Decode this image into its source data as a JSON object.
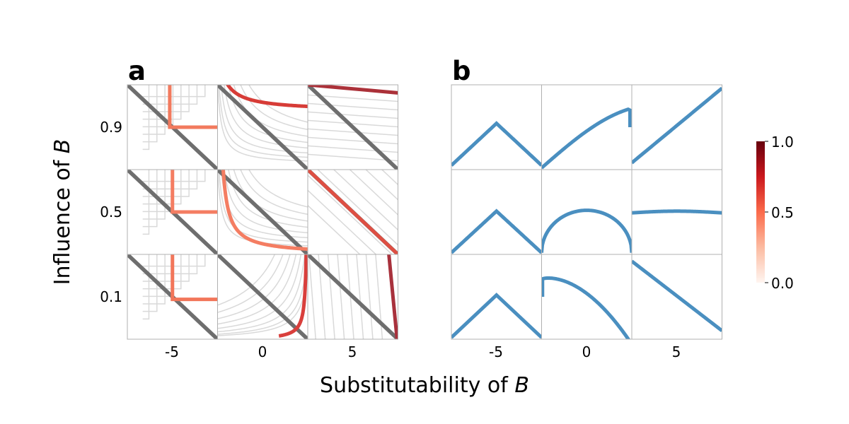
{
  "chart_data": {
    "type": "line",
    "panel_labels": [
      "a",
      "b"
    ],
    "xlabel": "Substitutability of ",
    "xlabel_var": "B",
    "ylabel": "Influence of ",
    "ylabel_var": "B",
    "x_tick_labels": [
      "-5",
      "0",
      "5"
    ],
    "y_tick_labels": [
      "0.9",
      "0.5",
      "0.1"
    ],
    "grid_rows_influence": [
      0.9,
      0.5,
      0.1
    ],
    "grid_cols_substitutability": [
      -5,
      0,
      5
    ],
    "colorbar": {
      "tick_labels": [
        "1.0",
        "0.5",
        "0.0"
      ],
      "range": [
        0.0,
        1.0
      ],
      "colors": [
        "#fff5f0",
        "#fcbba1",
        "#fb6a4a",
        "#cb181d",
        "#67000d"
      ]
    },
    "colors": {
      "budget_line": "#6e6e6e",
      "indifference_curves": "#d9d9d9",
      "curve_b": "#4a8fc0",
      "cell_border": "#b0b0b0"
    },
    "panel_a_optimal_curve_colors": [
      [
        "#f27a5e",
        "#d73c37",
        "#ab3139"
      ],
      [
        "#f47d62",
        "#f47d62",
        "#de4f43"
      ],
      [
        "#f2765a",
        "#d93f3c",
        "#a8313c"
      ]
    ]
  }
}
